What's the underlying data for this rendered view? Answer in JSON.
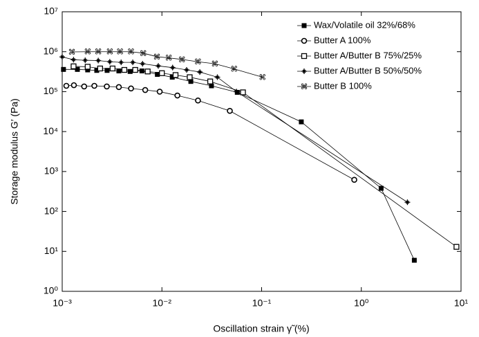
{
  "chart_data": {
    "type": "line",
    "xscale": "log",
    "yscale": "log",
    "x_label": "Oscillation strain γ̃ (%)",
    "y_label": "Storage modulus G′ (Pa)",
    "xlim": [
      0.001,
      10
    ],
    "ylim": [
      1,
      10000000
    ],
    "xticks": [
      {
        "value": 0.001,
        "label": "10⁻³"
      },
      {
        "value": 0.01,
        "label": "10⁻²"
      },
      {
        "value": 0.1,
        "label": "10⁻¹"
      },
      {
        "value": 1,
        "label": "10⁰"
      },
      {
        "value": 10,
        "label": "10¹"
      }
    ],
    "yticks": [
      {
        "value": 1,
        "label": "10⁰"
      },
      {
        "value": 10,
        "label": "10¹"
      },
      {
        "value": 100,
        "label": "10²"
      },
      {
        "value": 1000,
        "label": "10³"
      },
      {
        "value": 10000,
        "label": "10⁴"
      },
      {
        "value": 100000,
        "label": "10⁵"
      },
      {
        "value": 1000000,
        "label": "10⁶"
      },
      {
        "value": 10000000,
        "label": "10⁷"
      }
    ],
    "legend": "upper right",
    "series": [
      {
        "name": "Wax/Volatile oil 32%/68%",
        "color": "#000000",
        "marker": "square-filled",
        "x": [
          0.00103,
          0.00142,
          0.0018,
          0.00222,
          0.00282,
          0.0037,
          0.0048,
          0.0063,
          0.009,
          0.0127,
          0.0195,
          0.0314,
          0.057,
          0.25,
          1.58,
          3.4
        ],
        "values": [
          360000,
          360000,
          350000,
          340000,
          340000,
          330000,
          320000,
          330000,
          270000,
          230000,
          180000,
          140000,
          96000,
          17500,
          380,
          6
        ]
      },
      {
        "name": "Butter A 100%",
        "color": "#000000",
        "marker": "circle-open",
        "x": [
          0.0011,
          0.00131,
          0.00166,
          0.0021,
          0.0028,
          0.0037,
          0.0049,
          0.0068,
          0.0095,
          0.0143,
          0.023,
          0.048,
          0.85
        ],
        "values": [
          140000,
          145000,
          135000,
          140000,
          135000,
          130000,
          120000,
          110000,
          100000,
          80000,
          60000,
          33000,
          620
        ]
      },
      {
        "name": "Butter A/Butter B 75%/25%",
        "color": "#000000",
        "marker": "square-open",
        "x": [
          0.0013,
          0.0018,
          0.0024,
          0.0032,
          0.0042,
          0.0054,
          0.0072,
          0.01,
          0.0137,
          0.019,
          0.0305,
          0.065,
          9.0
        ],
        "values": [
          430000,
          420000,
          380000,
          380000,
          350000,
          350000,
          320000,
          290000,
          260000,
          230000,
          180000,
          96000,
          13
        ]
      },
      {
        "name": "Butter A/Butter B 50%/50%",
        "color": "#000000",
        "marker": "star",
        "x": [
          0.001,
          0.0013,
          0.0017,
          0.0023,
          0.003,
          0.0039,
          0.0051,
          0.0064,
          0.0092,
          0.0128,
          0.0177,
          0.024,
          0.036,
          0.056,
          2.9
        ],
        "values": [
          740000,
          630000,
          610000,
          600000,
          560000,
          540000,
          540000,
          500000,
          440000,
          400000,
          350000,
          310000,
          230000,
          100000,
          170
        ]
      },
      {
        "name": "Butter B 100%",
        "color": "#000000",
        "marker": "command",
        "x": [
          0.00125,
          0.0018,
          0.0023,
          0.003,
          0.0038,
          0.0049,
          0.0065,
          0.0089,
          0.0117,
          0.0159,
          0.023,
          0.034,
          0.053,
          0.102
        ],
        "values": [
          990000,
          1000000,
          1000000,
          1000000,
          1000000,
          1000000,
          920000,
          750000,
          700000,
          640000,
          560000,
          500000,
          370000,
          230000
        ]
      }
    ]
  }
}
